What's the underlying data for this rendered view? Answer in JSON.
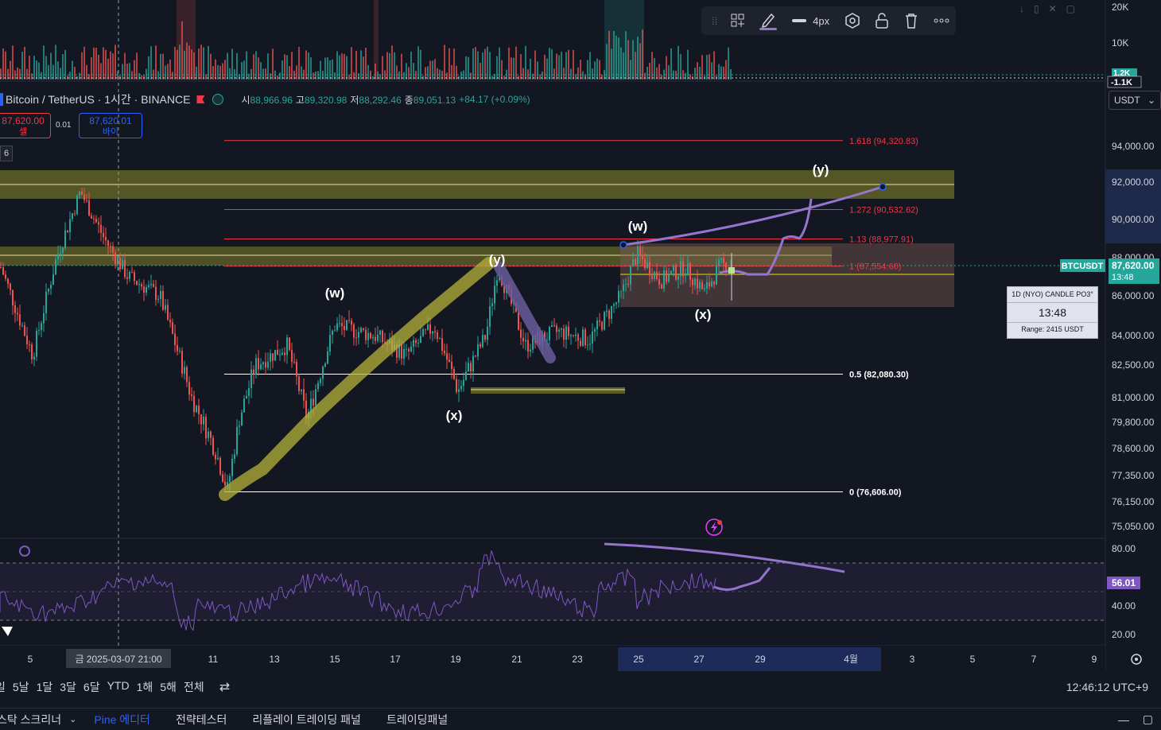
{
  "symbol": {
    "name": "Bitcoin / TetherUS · 1시간 · BINANCE",
    "ohlc": [
      {
        "label": "시",
        "value": "88,966.96"
      },
      {
        "label": "고",
        "value": "89,320.98"
      },
      {
        "label": "저",
        "value": "88,292.46"
      },
      {
        "label": "종",
        "value": "89,051.13"
      }
    ],
    "change": "+84.17 (+0.09%)",
    "sell_price": "87,620.00",
    "sell_label": "셀",
    "buy_price": "87,620.01",
    "buy_label": "바이",
    "spread": "0.01",
    "indicator_count": "6"
  },
  "toolbar": {
    "width_label": "4px"
  },
  "currency": "USDT",
  "chart_data": {
    "type": "candlestick",
    "price_ticks": [
      "94,000.00",
      "92,000.00",
      "90,000.00",
      "88,000.00",
      "86,000.00",
      "84,000.00",
      "82,500.00",
      "81,000.00",
      "79,800.00",
      "78,600.00",
      "77,350.00",
      "76,150.00",
      "75,050.00"
    ],
    "volume_ticks": [
      "20K",
      "10K"
    ],
    "volume_badges": [
      "1.2K",
      "-1.1K"
    ],
    "rsi_ticks": [
      "80.00",
      "60.00",
      "40.00",
      "20.00"
    ],
    "rsi_value": "56.01",
    "x_ticks": [
      "5",
      "11",
      "13",
      "15",
      "17",
      "19",
      "21",
      "23",
      "25",
      "27",
      "29",
      "4월",
      "3",
      "5",
      "7",
      "9"
    ],
    "crosshair_label": "금 2025-03-07   21:00",
    "last_price": {
      "symbol": "BTCUSDT",
      "price": "87,620.00",
      "countdown": "13:48"
    },
    "fib_levels": [
      {
        "label": "1.618 (94,320.83)",
        "price": 94320.83,
        "color": "#f23645"
      },
      {
        "label": "1.272 (90,532.62)",
        "price": 90532.62,
        "color": "#f23645"
      },
      {
        "label": "1.13 (88,977.91)",
        "price": 88977.91,
        "color": "#f23645"
      },
      {
        "label": "1 (87,554.60)",
        "price": 87554.6,
        "color": "#f23645"
      },
      {
        "label": "0.5 (82,080.30)",
        "price": 82080.3,
        "color": "#ffffff"
      },
      {
        "label": "0 (76,606.00)",
        "price": 76606.0,
        "color": "#ffffff"
      }
    ],
    "wave_labels": [
      "(w)",
      "(x)",
      "(y)",
      "(w)",
      "(x)",
      "(y)"
    ],
    "candle_info": {
      "title": "1D (NYO) CANDLE PO3°",
      "countdown": "13:48",
      "range": "Range: 2415 USDT"
    }
  },
  "timeframes": [
    "일",
    "5날",
    "1달",
    "3달",
    "6달",
    "YTD",
    "1해",
    "5해",
    "전체"
  ],
  "clock": "12:46:12 UTC+9",
  "panels": [
    "스탁 스크리너",
    "Pine 에디터",
    "전략테스터",
    "리플레이 트레이딩 패널",
    "트레이딩패널"
  ]
}
